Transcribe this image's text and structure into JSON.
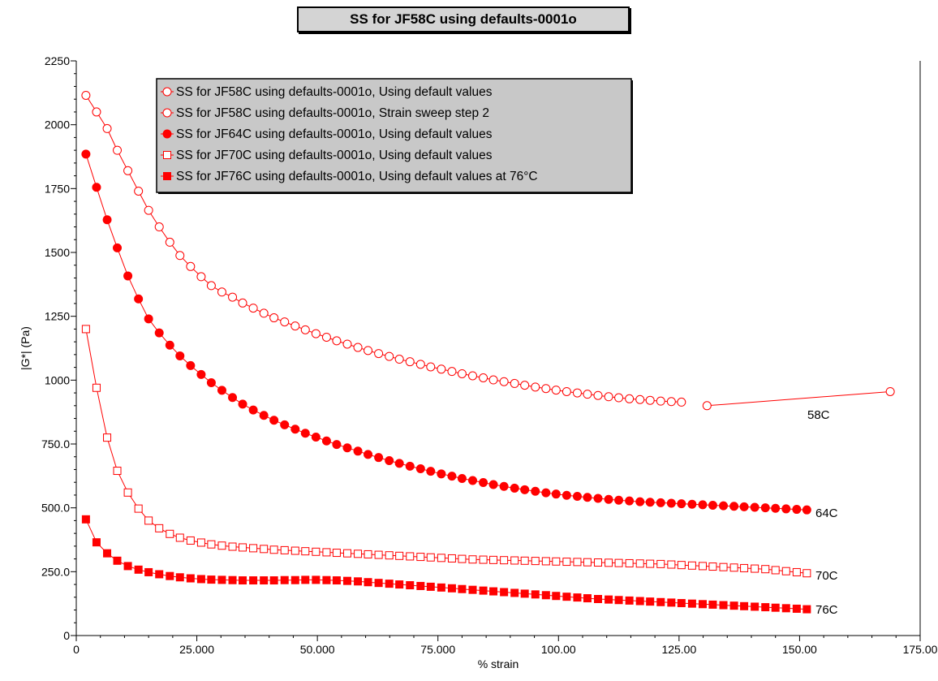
{
  "chart_data": {
    "type": "scatter",
    "title": "SS for JF58C using defaults-0001o",
    "xlabel": "% strain",
    "ylabel": "|G*| (Pa)",
    "xlim": [
      0,
      175
    ],
    "ylim": [
      0,
      2250
    ],
    "x_ticks": [
      "0",
      "25.000",
      "50.000",
      "75.000",
      "100.00",
      "125.00",
      "150.00",
      "175.00"
    ],
    "y_ticks": [
      "0",
      "250.0",
      "500.0",
      "750.0",
      "1000",
      "1250",
      "1500",
      "1750",
      "2000",
      "2250"
    ],
    "legend_position": "top-left",
    "colors": {
      "series": "#ff0000",
      "legend_bg": "#c8c8c8",
      "title_bg": "#d4d4d4"
    },
    "series": [
      {
        "name": "SS for JF58C using defaults-0001o, Using default values",
        "marker": "circle-open",
        "end_label": "",
        "points": [
          [
            2.0,
            2115
          ],
          [
            4.2,
            2050
          ],
          [
            6.4,
            1985
          ],
          [
            8.5,
            1900
          ],
          [
            10.7,
            1820
          ],
          [
            12.9,
            1740
          ],
          [
            15.0,
            1665
          ],
          [
            17.2,
            1600
          ],
          [
            19.4,
            1540
          ],
          [
            21.5,
            1488
          ],
          [
            23.7,
            1445
          ],
          [
            25.9,
            1405
          ],
          [
            28.0,
            1370
          ],
          [
            30.2,
            1345
          ],
          [
            32.4,
            1325
          ],
          [
            34.5,
            1302
          ],
          [
            36.7,
            1282
          ],
          [
            38.9,
            1262
          ],
          [
            41.0,
            1244
          ],
          [
            43.2,
            1228
          ],
          [
            45.4,
            1212
          ],
          [
            47.5,
            1197
          ],
          [
            49.7,
            1182
          ],
          [
            51.9,
            1168
          ],
          [
            54.0,
            1154
          ],
          [
            56.2,
            1141
          ],
          [
            58.4,
            1128
          ],
          [
            60.5,
            1116
          ],
          [
            62.7,
            1104
          ],
          [
            64.9,
            1093
          ],
          [
            67.0,
            1082
          ],
          [
            69.2,
            1072
          ],
          [
            71.4,
            1062
          ],
          [
            73.5,
            1052
          ],
          [
            75.7,
            1043
          ],
          [
            77.9,
            1034
          ],
          [
            80.0,
            1025
          ],
          [
            82.2,
            1017
          ],
          [
            84.4,
            1009
          ],
          [
            86.5,
            1001
          ],
          [
            88.7,
            994
          ],
          [
            90.9,
            987
          ],
          [
            93.0,
            980
          ],
          [
            95.2,
            973
          ],
          [
            97.4,
            967
          ],
          [
            99.5,
            961
          ],
          [
            101.7,
            955
          ],
          [
            103.9,
            950
          ],
          [
            106.0,
            945
          ],
          [
            108.2,
            940
          ],
          [
            110.4,
            935
          ],
          [
            112.5,
            931
          ],
          [
            114.7,
            927
          ],
          [
            116.9,
            924
          ],
          [
            119.0,
            921
          ],
          [
            121.2,
            918
          ],
          [
            123.4,
            916
          ],
          [
            125.5,
            914
          ]
        ]
      },
      {
        "name": "SS for JF58C using defaults-0001o, Strain sweep step 2",
        "marker": "circle-open",
        "end_label": "58C",
        "points": [
          [
            130.8,
            900
          ],
          [
            168.8,
            955
          ]
        ]
      },
      {
        "name": "SS for JF64C using defaults-0001o, Using default values",
        "marker": "circle-filled",
        "end_label": "64C",
        "points": [
          [
            2.0,
            1885
          ],
          [
            4.2,
            1755
          ],
          [
            6.4,
            1628
          ],
          [
            8.5,
            1518
          ],
          [
            10.7,
            1408
          ],
          [
            12.9,
            1318
          ],
          [
            15.0,
            1240
          ],
          [
            17.2,
            1185
          ],
          [
            19.4,
            1137
          ],
          [
            21.5,
            1095
          ],
          [
            23.7,
            1057
          ],
          [
            25.9,
            1022
          ],
          [
            28.0,
            990
          ],
          [
            30.2,
            960
          ],
          [
            32.4,
            932
          ],
          [
            34.5,
            906
          ],
          [
            36.7,
            883
          ],
          [
            38.9,
            862
          ],
          [
            41.0,
            843
          ],
          [
            43.2,
            825
          ],
          [
            45.4,
            808
          ],
          [
            47.5,
            792
          ],
          [
            49.7,
            777
          ],
          [
            51.9,
            762
          ],
          [
            54.0,
            748
          ],
          [
            56.2,
            735
          ],
          [
            58.4,
            722
          ],
          [
            60.5,
            709
          ],
          [
            62.7,
            697
          ],
          [
            64.9,
            685
          ],
          [
            67.0,
            674
          ],
          [
            69.2,
            663
          ],
          [
            71.4,
            653
          ],
          [
            73.5,
            643
          ],
          [
            75.7,
            633
          ],
          [
            77.9,
            624
          ],
          [
            80.0,
            615
          ],
          [
            82.2,
            607
          ],
          [
            84.4,
            599
          ],
          [
            86.5,
            591
          ],
          [
            88.7,
            584
          ],
          [
            90.9,
            577
          ],
          [
            93.0,
            571
          ],
          [
            95.2,
            565
          ],
          [
            97.4,
            559
          ],
          [
            99.5,
            554
          ],
          [
            101.7,
            549
          ],
          [
            103.9,
            545
          ],
          [
            106.0,
            541
          ],
          [
            108.2,
            537
          ],
          [
            110.4,
            533
          ],
          [
            112.5,
            530
          ],
          [
            114.7,
            527
          ],
          [
            116.9,
            524
          ],
          [
            119.0,
            522
          ],
          [
            121.2,
            520
          ],
          [
            123.4,
            518
          ],
          [
            125.5,
            516
          ],
          [
            127.7,
            514
          ],
          [
            129.9,
            512
          ],
          [
            132.0,
            510
          ],
          [
            134.2,
            508
          ],
          [
            136.4,
            506
          ],
          [
            138.5,
            504
          ],
          [
            140.7,
            502
          ],
          [
            142.9,
            500
          ],
          [
            145.0,
            498
          ],
          [
            147.2,
            496
          ],
          [
            149.4,
            494
          ],
          [
            151.5,
            492
          ]
        ]
      },
      {
        "name": "SS for JF70C using defaults-0001o, Using default values",
        "marker": "square-open",
        "end_label": "70C",
        "points": [
          [
            2.0,
            1200
          ],
          [
            4.2,
            970
          ],
          [
            6.4,
            775
          ],
          [
            8.5,
            645
          ],
          [
            10.7,
            560
          ],
          [
            12.9,
            497
          ],
          [
            15.0,
            450
          ],
          [
            17.2,
            420
          ],
          [
            19.4,
            398
          ],
          [
            21.5,
            383
          ],
          [
            23.7,
            372
          ],
          [
            25.9,
            364
          ],
          [
            28.0,
            357
          ],
          [
            30.2,
            352
          ],
          [
            32.4,
            348
          ],
          [
            34.5,
            345
          ],
          [
            36.7,
            342
          ],
          [
            38.9,
            339
          ],
          [
            41.0,
            336
          ],
          [
            43.2,
            334
          ],
          [
            45.4,
            332
          ],
          [
            47.5,
            330
          ],
          [
            49.7,
            328
          ],
          [
            51.9,
            326
          ],
          [
            54.0,
            324
          ],
          [
            56.2,
            322
          ],
          [
            58.4,
            320
          ],
          [
            60.5,
            318
          ],
          [
            62.7,
            316
          ],
          [
            64.9,
            314
          ],
          [
            67.0,
            312
          ],
          [
            69.2,
            310
          ],
          [
            71.4,
            308
          ],
          [
            73.5,
            306
          ],
          [
            75.7,
            304
          ],
          [
            77.9,
            302
          ],
          [
            80.0,
            300
          ],
          [
            82.2,
            298
          ],
          [
            84.4,
            297
          ],
          [
            86.5,
            296
          ],
          [
            88.7,
            295
          ],
          [
            90.9,
            294
          ],
          [
            93.0,
            293
          ],
          [
            95.2,
            292
          ],
          [
            97.4,
            291
          ],
          [
            99.5,
            290
          ],
          [
            101.7,
            289
          ],
          [
            103.9,
            288
          ],
          [
            106.0,
            287
          ],
          [
            108.2,
            286
          ],
          [
            110.4,
            285
          ],
          [
            112.5,
            284
          ],
          [
            114.7,
            283
          ],
          [
            116.9,
            282
          ],
          [
            119.0,
            281
          ],
          [
            121.2,
            280
          ],
          [
            123.4,
            278
          ],
          [
            125.5,
            276
          ],
          [
            127.7,
            274
          ],
          [
            129.9,
            272
          ],
          [
            132.0,
            270
          ],
          [
            134.2,
            268
          ],
          [
            136.4,
            266
          ],
          [
            138.5,
            264
          ],
          [
            140.7,
            262
          ],
          [
            142.9,
            260
          ],
          [
            145.0,
            256
          ],
          [
            147.2,
            252
          ],
          [
            149.4,
            248
          ],
          [
            151.5,
            244
          ]
        ]
      },
      {
        "name": "SS for JF76C using defaults-0001o, Using default values at 76°C",
        "marker": "square-filled",
        "end_label": "76C",
        "points": [
          [
            2.0,
            455
          ],
          [
            4.2,
            365
          ],
          [
            6.4,
            322
          ],
          [
            8.5,
            293
          ],
          [
            10.7,
            272
          ],
          [
            12.9,
            258
          ],
          [
            15.0,
            248
          ],
          [
            17.2,
            240
          ],
          [
            19.4,
            233
          ],
          [
            21.5,
            228
          ],
          [
            23.7,
            224
          ],
          [
            25.9,
            221
          ],
          [
            28.0,
            219
          ],
          [
            30.2,
            218
          ],
          [
            32.4,
            217
          ],
          [
            34.5,
            216
          ],
          [
            36.7,
            216
          ],
          [
            38.9,
            216
          ],
          [
            41.0,
            216
          ],
          [
            43.2,
            217
          ],
          [
            45.4,
            217
          ],
          [
            47.5,
            218
          ],
          [
            49.7,
            218
          ],
          [
            51.9,
            217
          ],
          [
            54.0,
            216
          ],
          [
            56.2,
            214
          ],
          [
            58.4,
            212
          ],
          [
            60.5,
            209
          ],
          [
            62.7,
            206
          ],
          [
            64.9,
            203
          ],
          [
            67.0,
            200
          ],
          [
            69.2,
            197
          ],
          [
            71.4,
            194
          ],
          [
            73.5,
            191
          ],
          [
            75.7,
            188
          ],
          [
            77.9,
            185
          ],
          [
            80.0,
            182
          ],
          [
            82.2,
            179
          ],
          [
            84.4,
            176
          ],
          [
            86.5,
            173
          ],
          [
            88.7,
            170
          ],
          [
            90.9,
            167
          ],
          [
            93.0,
            164
          ],
          [
            95.2,
            161
          ],
          [
            97.4,
            158
          ],
          [
            99.5,
            155
          ],
          [
            101.7,
            152
          ],
          [
            103.9,
            149
          ],
          [
            106.0,
            146
          ],
          [
            108.2,
            143
          ],
          [
            110.4,
            141
          ],
          [
            112.5,
            139
          ],
          [
            114.7,
            137
          ],
          [
            116.9,
            135
          ],
          [
            119.0,
            133
          ],
          [
            121.2,
            131
          ],
          [
            123.4,
            129
          ],
          [
            125.5,
            127
          ],
          [
            127.7,
            125
          ],
          [
            129.9,
            123
          ],
          [
            132.0,
            121
          ],
          [
            134.2,
            119
          ],
          [
            136.4,
            117
          ],
          [
            138.5,
            115
          ],
          [
            140.7,
            113
          ],
          [
            142.9,
            111
          ],
          [
            145.0,
            109
          ],
          [
            147.2,
            107
          ],
          [
            149.4,
            105
          ],
          [
            151.5,
            103
          ]
        ]
      }
    ]
  }
}
